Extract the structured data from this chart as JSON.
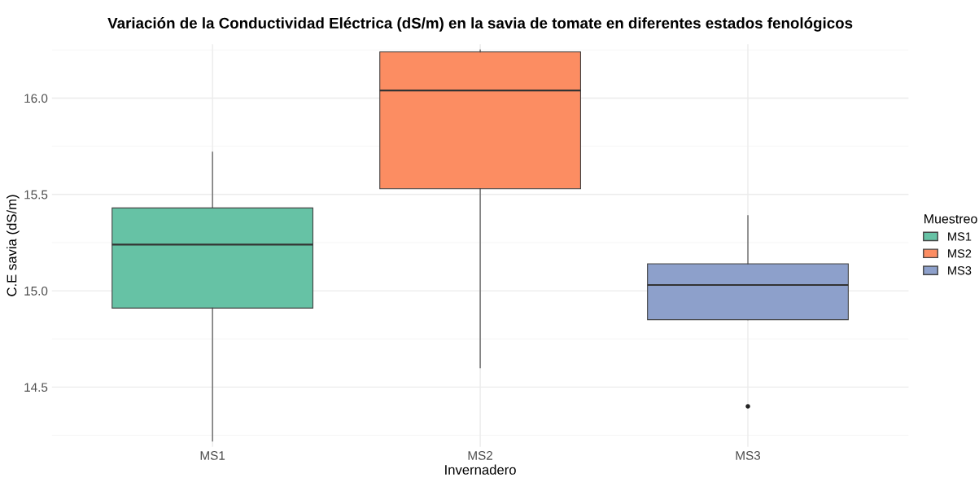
{
  "chart_data": {
    "type": "box",
    "title": "Variación de la Conductividad Eléctrica (dS/m) en la savia de tomate en diferentes estados fenológicos",
    "xlabel": "Invernadero",
    "ylabel": "C.E savia (dS/m)",
    "legend_title": "Muestreo",
    "categories": [
      "MS1",
      "MS2",
      "MS3"
    ],
    "series": [
      {
        "name": "MS1",
        "color": "#66c2a5",
        "boxes": [
          {
            "low": 14.22,
            "q1": 14.91,
            "median": 15.24,
            "q3": 15.43,
            "high": 15.72
          },
          null,
          null
        ]
      },
      {
        "name": "MS2",
        "color": "#fc8d62",
        "boxes": [
          null,
          {
            "low": 14.6,
            "q1": 15.53,
            "median": 16.04,
            "q3": 16.24,
            "high": 16.25
          },
          null
        ]
      },
      {
        "name": "MS3",
        "color": "#8da0cb",
        "boxes": [
          null,
          null,
          {
            "low": 14.85,
            "q1": 14.85,
            "median": 15.03,
            "q3": 15.14,
            "high": 15.39,
            "outliers": [
              14.4
            ]
          }
        ]
      }
    ],
    "ylim": [
      14.19,
      16.28
    ],
    "yticks": [
      {
        "value": 14.5,
        "label": "14.5"
      },
      {
        "value": 15.0,
        "label": "15.0"
      },
      {
        "value": 15.5,
        "label": "15.5"
      },
      {
        "value": 16.0,
        "label": "16.0"
      }
    ],
    "grid": true,
    "legend": "right"
  }
}
